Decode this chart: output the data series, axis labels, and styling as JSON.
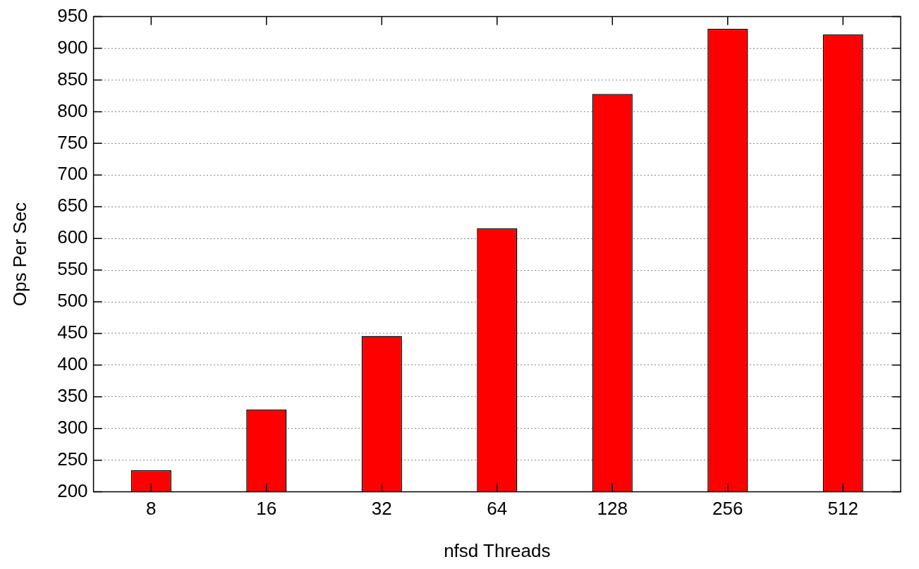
{
  "chart_data": {
    "type": "bar",
    "xlabel": "nfsd Threads",
    "ylabel": "Ops Per Sec",
    "categories": [
      "8",
      "16",
      "32",
      "64",
      "128",
      "256",
      "512"
    ],
    "values": [
      234,
      330,
      446,
      616,
      828,
      931,
      922
    ],
    "color": "#ff0000",
    "ylim": [
      200,
      950
    ],
    "yticks": [
      200,
      250,
      300,
      350,
      400,
      450,
      500,
      550,
      600,
      650,
      700,
      750,
      800,
      850,
      900,
      950
    ],
    "grid": "y",
    "legend": false
  }
}
